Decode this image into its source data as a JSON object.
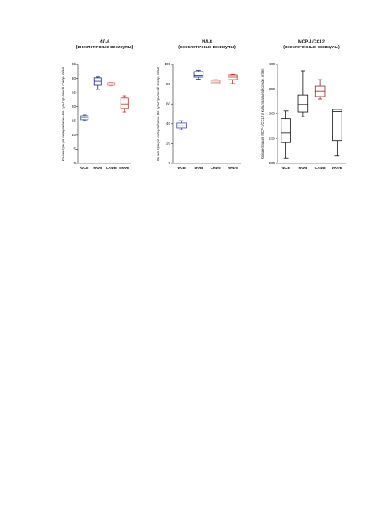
{
  "chart_data": [
    {
      "type": "box",
      "title": "ИЛ-6",
      "subtitle": "(внеклеточные везикулы)",
      "y_label": "Концентрация интерлейкина-6 в культуральной среде, пг/мл",
      "categories": [
        "ФСБ",
        "МФБ",
        "СКФБ",
        "ИКФБ"
      ],
      "colors": [
        "#3a4fa0",
        "#1a2a8a",
        "#d97a7a",
        "#c0302a"
      ],
      "boxes": [
        {
          "min": 15.1,
          "q1": 15.4,
          "median": 16.2,
          "q3": 16.8,
          "max": 17.1
        },
        {
          "min": 26.2,
          "q1": 27.6,
          "median": 29,
          "q3": 30.2,
          "max": 30.5
        },
        {
          "min": 27.4,
          "q1": 27.6,
          "median": 28,
          "q3": 28.5,
          "max": 28.6
        },
        {
          "min": 18.2,
          "q1": 19.4,
          "median": 21,
          "q3": 23.1,
          "max": 23.9
        }
      ],
      "ylim": [
        0,
        35
      ],
      "yticks": [
        0,
        5,
        10,
        15,
        20,
        25,
        30,
        35
      ]
    },
    {
      "type": "box",
      "title": "ИЛ-8",
      "subtitle": "(внеклеточные везикулы)",
      "y_label": "Концентрация интерлейкина-8 в культуральной среде, пг/мл",
      "categories": [
        "ФСБ",
        "МФБ",
        "СКФБ",
        "ИКФБ"
      ],
      "colors": [
        "#3a4fa0",
        "#1a2a8a",
        "#d97a7a",
        "#c0302a"
      ],
      "boxes": [
        {
          "min": 34,
          "q1": 35.8,
          "median": 38,
          "q3": 40.7,
          "max": 43
        },
        {
          "min": 85,
          "q1": 87,
          "median": 89,
          "q3": 92.7,
          "max": 94
        },
        {
          "min": 80,
          "q1": 80.5,
          "median": 82,
          "q3": 83.7,
          "max": 84.5
        },
        {
          "min": 80.5,
          "q1": 84.5,
          "median": 87,
          "q3": 89.4,
          "max": 90
        }
      ],
      "ylim": [
        0,
        100
      ],
      "yticks": [
        0,
        20,
        40,
        60,
        80,
        100
      ]
    },
    {
      "type": "box",
      "title": "MCP-1/CCL2",
      "subtitle": "(внеклеточные везикулы)",
      "y_label": "Концентрация MCP-1/CCL2 в культуральной среде, пг/мл",
      "categories": [
        "ФСБ",
        "МФБ",
        "СКФБ",
        "ИКФБ"
      ],
      "colors": [
        "#111111",
        "#111111",
        "#8a2a2a",
        "#111111"
      ],
      "boxes": [
        {
          "min": 211,
          "q1": 242,
          "median": 262,
          "q3": 290,
          "max": 306
        },
        {
          "min": 294,
          "q1": 304,
          "median": 319,
          "q3": 338,
          "max": 387
        },
        {
          "min": 330,
          "q1": 335,
          "median": 346,
          "q3": 356,
          "max": 369
        },
        {
          "min": 215,
          "q1": 246,
          "median": 305,
          "q3": 309,
          "max": 309
        }
      ],
      "ylim": [
        200,
        400
      ],
      "yticks": [
        200,
        250,
        300,
        350,
        400
      ]
    }
  ]
}
